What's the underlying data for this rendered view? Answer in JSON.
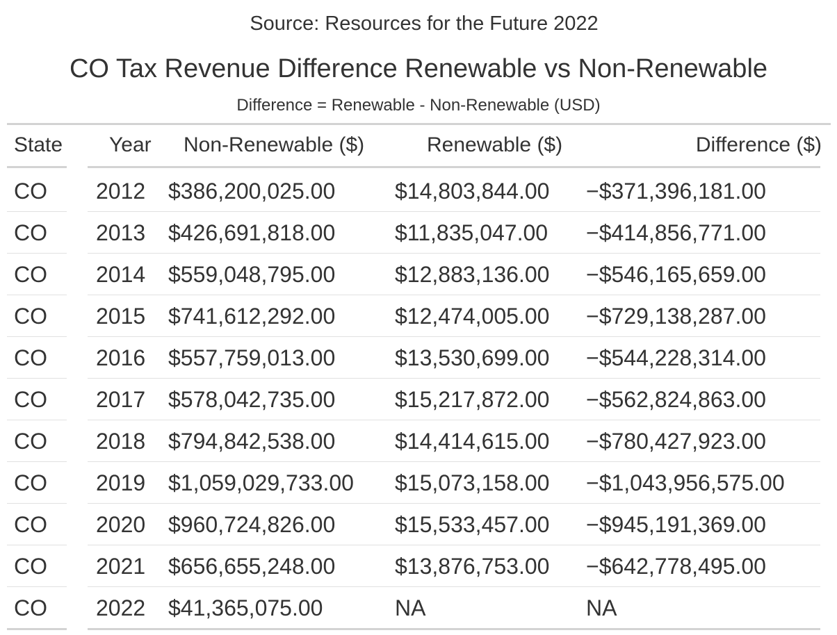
{
  "chart_data": {
    "type": "table",
    "source_note": "Source: Resources for the Future 2022",
    "title": "CO Tax Revenue Difference Renewable vs Non-Renewable",
    "subtitle": "Difference = Renewable - Non-Renewable (USD)",
    "columns": [
      "State",
      "Year",
      "Non-Renewable ($)",
      "Renewable ($)",
      "Difference ($)"
    ],
    "rows": [
      [
        "CO",
        "2012",
        "$386,200,025.00",
        "$14,803,844.00",
        "−$371,396,181.00"
      ],
      [
        "CO",
        "2013",
        "$426,691,818.00",
        "$11,835,047.00",
        "−$414,856,771.00"
      ],
      [
        "CO",
        "2014",
        "$559,048,795.00",
        "$12,883,136.00",
        "−$546,165,659.00"
      ],
      [
        "CO",
        "2015",
        "$741,612,292.00",
        "$12,474,005.00",
        "−$729,138,287.00"
      ],
      [
        "CO",
        "2016",
        "$557,759,013.00",
        "$13,530,699.00",
        "−$544,228,314.00"
      ],
      [
        "CO",
        "2017",
        "$578,042,735.00",
        "$15,217,872.00",
        "−$562,824,863.00"
      ],
      [
        "CO",
        "2018",
        "$794,842,538.00",
        "$14,414,615.00",
        "−$780,427,923.00"
      ],
      [
        "CO",
        "2019",
        "$1,059,029,733.00",
        "$15,073,158.00",
        "−$1,043,956,575.00"
      ],
      [
        "CO",
        "2020",
        "$960,724,826.00",
        "$15,533,457.00",
        "−$945,191,369.00"
      ],
      [
        "CO",
        "2021",
        "$656,655,248.00",
        "$13,876,753.00",
        "−$642,778,495.00"
      ],
      [
        "CO",
        "2022",
        "$41,365,075.00",
        "NA",
        "NA"
      ]
    ]
  }
}
